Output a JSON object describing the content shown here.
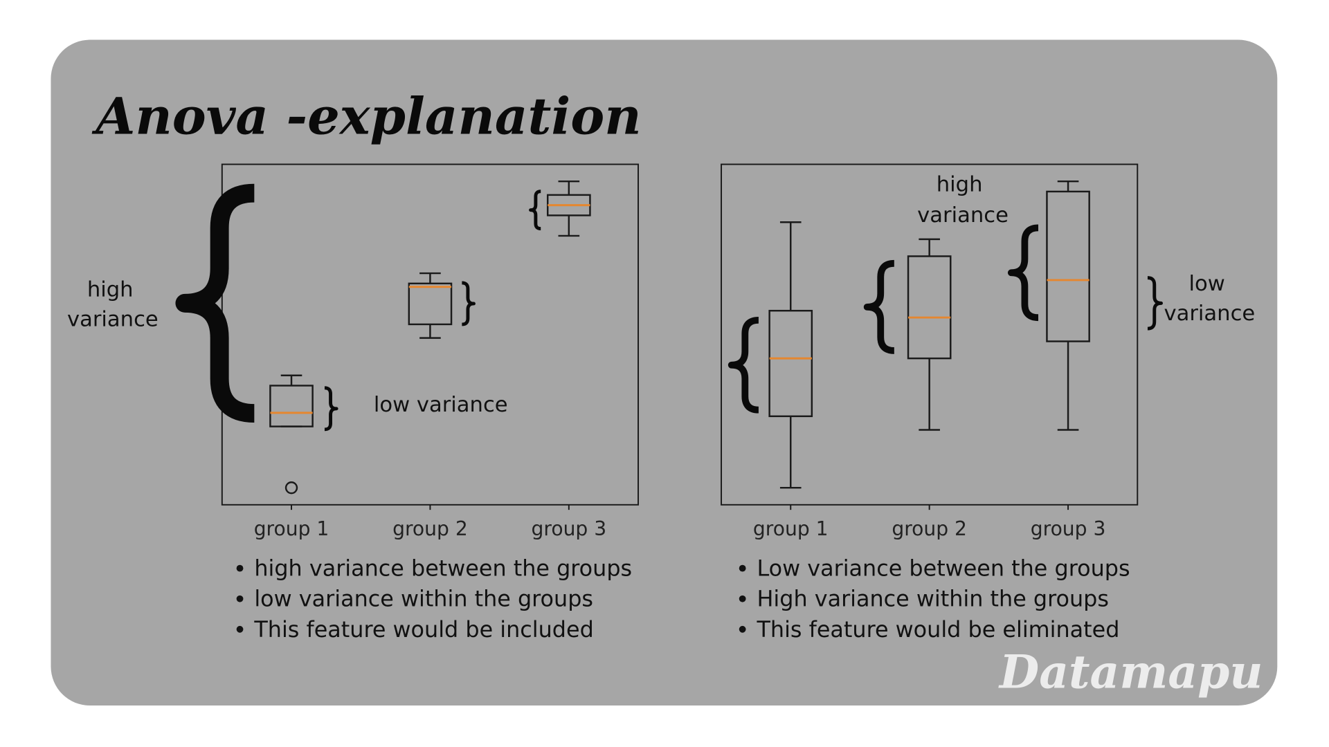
{
  "title": "Anova -explanation",
  "brand": "Datamapu",
  "chart_data": [
    {
      "type": "box",
      "categories": [
        "group 1",
        "group 2",
        "group 3"
      ],
      "ylim": [
        0,
        10
      ],
      "color": "#1a1a1a",
      "median_color": "#e5872f",
      "boxes": [
        {
          "whisker_low": 2.3,
          "q1": 2.3,
          "median": 2.7,
          "q3": 3.5,
          "whisker_high": 3.8,
          "outliers": [
            0.5
          ]
        },
        {
          "whisker_low": 4.9,
          "q1": 5.3,
          "median": 6.4,
          "q3": 6.5,
          "whisker_high": 6.8,
          "outliers": []
        },
        {
          "whisker_low": 7.9,
          "q1": 8.5,
          "median": 8.8,
          "q3": 9.1,
          "whisker_high": 9.5,
          "outliers": []
        }
      ],
      "annotations": [
        {
          "lines": [
            "high",
            "variance"
          ]
        },
        {
          "lines": [
            "low variance"
          ]
        }
      ],
      "bullets": [
        "high variance between the groups",
        "low variance within the groups",
        "This feature would be included"
      ]
    },
    {
      "type": "box",
      "categories": [
        "group 1",
        "group 2",
        "group 3"
      ],
      "ylim": [
        0,
        10
      ],
      "color": "#1a1a1a",
      "median_color": "#e5872f",
      "boxes": [
        {
          "whisker_low": 0.5,
          "q1": 2.6,
          "median": 4.3,
          "q3": 5.7,
          "whisker_high": 8.3,
          "outliers": []
        },
        {
          "whisker_low": 2.2,
          "q1": 4.3,
          "median": 5.5,
          "q3": 7.3,
          "whisker_high": 7.8,
          "outliers": []
        },
        {
          "whisker_low": 2.2,
          "q1": 4.8,
          "median": 6.6,
          "q3": 9.2,
          "whisker_high": 9.5,
          "outliers": []
        }
      ],
      "annotations": [
        {
          "lines": [
            "high",
            "variance"
          ]
        },
        {
          "lines": [
            "low",
            "variance"
          ]
        }
      ],
      "bullets": [
        "Low variance between the groups",
        "High variance within the groups",
        "This feature would be eliminated"
      ]
    }
  ]
}
